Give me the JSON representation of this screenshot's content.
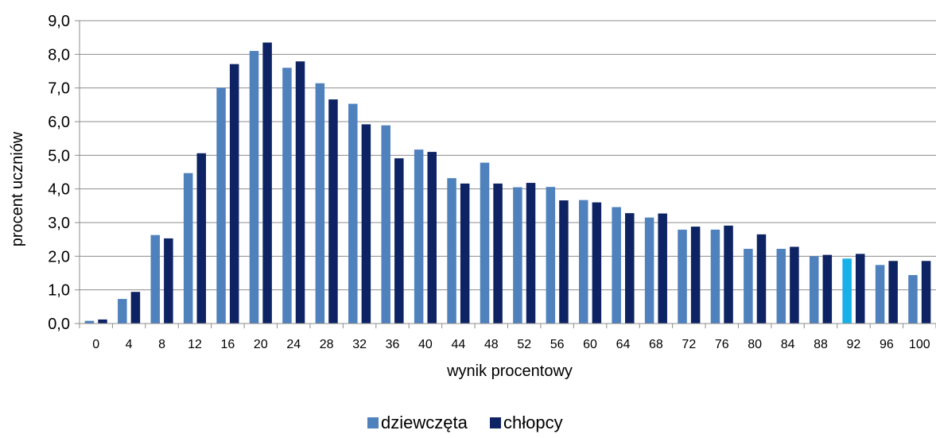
{
  "chart_data": {
    "type": "bar",
    "xlabel": "wynik procentowy",
    "ylabel": "procent uczniów",
    "ylim": [
      0,
      9
    ],
    "y_ticks": [
      "0,0",
      "1,0",
      "2,0",
      "3,0",
      "4,0",
      "5,0",
      "6,0",
      "7,0",
      "8,0",
      "9,0"
    ],
    "grid": true,
    "legend_position": "bottom",
    "categories": [
      "0",
      "4",
      "8",
      "12",
      "16",
      "20",
      "24",
      "28",
      "32",
      "36",
      "40",
      "44",
      "48",
      "52",
      "56",
      "60",
      "64",
      "68",
      "72",
      "76",
      "80",
      "84",
      "88",
      "92",
      "96",
      "100"
    ],
    "series": [
      {
        "name": "dziewczęta",
        "color": "#4F81BD",
        "values": [
          0.08,
          0.73,
          2.63,
          4.47,
          7.01,
          8.1,
          7.6,
          7.14,
          6.53,
          5.89,
          5.17,
          4.32,
          4.78,
          4.05,
          4.06,
          3.67,
          3.46,
          3.15,
          2.79,
          2.79,
          2.22,
          2.22,
          2.0,
          1.93,
          1.74,
          1.44
        ]
      },
      {
        "name": "chłopcy",
        "color": "#0D2364",
        "values": [
          0.12,
          0.94,
          2.53,
          5.06,
          7.71,
          8.35,
          7.79,
          6.66,
          5.92,
          4.91,
          5.1,
          4.16,
          4.16,
          4.18,
          3.66,
          3.6,
          3.28,
          3.27,
          2.88,
          2.91,
          2.65,
          2.28,
          2.04,
          2.07,
          1.86,
          1.86
        ]
      }
    ],
    "highlight": {
      "category": "92",
      "series": "dziewczęta",
      "color": "#17B0E8"
    }
  }
}
